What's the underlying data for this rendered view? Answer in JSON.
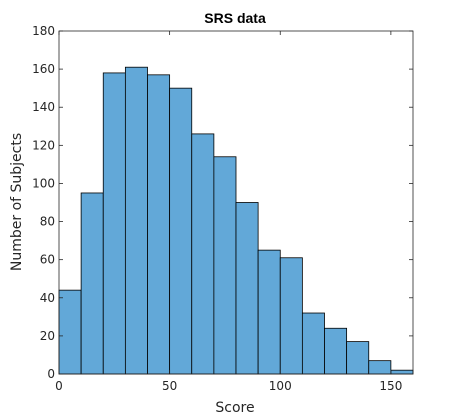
{
  "chart_data": {
    "type": "bar",
    "title": "SRS data",
    "xlabel": "Score",
    "ylabel": "Number of Subjects",
    "xlim": [
      0,
      160
    ],
    "ylim": [
      0,
      180
    ],
    "bin_width": 10,
    "bin_edges": [
      0,
      10,
      20,
      30,
      40,
      50,
      60,
      70,
      80,
      90,
      100,
      110,
      120,
      130,
      140,
      150,
      160
    ],
    "values": [
      44,
      95,
      158,
      161,
      157,
      150,
      126,
      114,
      90,
      65,
      61,
      32,
      24,
      17,
      7,
      2
    ],
    "x_ticks": [
      0,
      50,
      100,
      150
    ],
    "y_ticks": [
      0,
      20,
      40,
      60,
      80,
      100,
      120,
      140,
      160,
      180
    ],
    "grid": false,
    "box": true,
    "colors": {
      "bar_fill": "#62a8d8",
      "bar_edge": "#000000",
      "axis": "#262626"
    }
  }
}
